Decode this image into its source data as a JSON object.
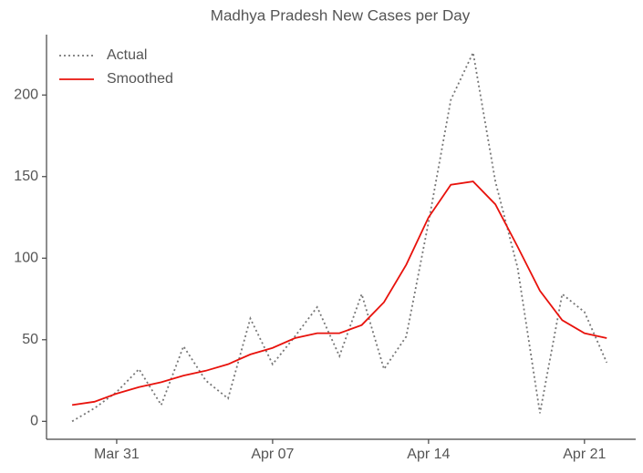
{
  "chart_data": {
    "type": "line",
    "title": "Madhya Pradesh New Cases per Day",
    "x": [
      "Mar 29",
      "Mar 30",
      "Mar 31",
      "Apr 01",
      "Apr 02",
      "Apr 03",
      "Apr 04",
      "Apr 05",
      "Apr 06",
      "Apr 07",
      "Apr 08",
      "Apr 09",
      "Apr 10",
      "Apr 11",
      "Apr 12",
      "Apr 13",
      "Apr 14",
      "Apr 15",
      "Apr 16",
      "Apr 17",
      "Apr 18",
      "Apr 19",
      "Apr 20",
      "Apr 21",
      "Apr 22"
    ],
    "series": [
      {
        "name": "Actual",
        "color": "#777777",
        "dash": "dotted",
        "values": [
          0,
          8,
          18,
          32,
          10,
          46,
          25,
          14,
          63,
          35,
          52,
          70,
          40,
          78,
          32,
          52,
          122,
          197,
          226,
          147,
          94,
          5,
          78,
          67,
          36
        ]
      },
      {
        "name": "Smoothed",
        "color": "#e8120c",
        "dash": "solid",
        "values": [
          10,
          12,
          17,
          21,
          24,
          28,
          31,
          35,
          41,
          45,
          51,
          54,
          54,
          59,
          73,
          96,
          125,
          145,
          147,
          133,
          107,
          80,
          62,
          54,
          51
        ]
      }
    ],
    "xticks": [
      "Mar 31",
      "Apr 07",
      "Apr 14",
      "Apr 21"
    ],
    "ylim": [
      -11,
      237
    ],
    "yticks": [
      0,
      50,
      100,
      150,
      200
    ],
    "legend": "upper left",
    "grid": false
  }
}
